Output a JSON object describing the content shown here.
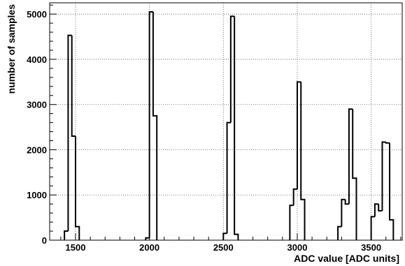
{
  "chart_data": {
    "type": "histogram",
    "xlabel": "ADC value [ADC units]",
    "ylabel": "number of samples",
    "xlim": [
      1325,
      3710
    ],
    "ylim": [
      0,
      5250
    ],
    "grid": true,
    "bin_width": 25,
    "x_ticks": [
      1500,
      2000,
      2500,
      3000,
      3500
    ],
    "y_ticks": [
      0,
      1000,
      2000,
      3000,
      4000,
      5000
    ],
    "x_tick_labels": [
      "1500",
      "2000",
      "2500",
      "3000",
      "3500"
    ],
    "y_tick_labels": [
      "0",
      "1000",
      "2000",
      "3000",
      "4000",
      "5000"
    ],
    "bins": [
      {
        "x": 1425,
        "y": 200
      },
      {
        "x": 1450,
        "y": 4530
      },
      {
        "x": 1475,
        "y": 2300
      },
      {
        "x": 1500,
        "y": 300
      },
      {
        "x": 1975,
        "y": 50
      },
      {
        "x": 2000,
        "y": 5050
      },
      {
        "x": 2025,
        "y": 2750
      },
      {
        "x": 2500,
        "y": 150
      },
      {
        "x": 2525,
        "y": 2600
      },
      {
        "x": 2550,
        "y": 4950
      },
      {
        "x": 2575,
        "y": 130
      },
      {
        "x": 2950,
        "y": 770
      },
      {
        "x": 2975,
        "y": 1130
      },
      {
        "x": 3000,
        "y": 3500
      },
      {
        "x": 3025,
        "y": 900
      },
      {
        "x": 3275,
        "y": 300
      },
      {
        "x": 3300,
        "y": 900
      },
      {
        "x": 3325,
        "y": 800
      },
      {
        "x": 3350,
        "y": 2900
      },
      {
        "x": 3375,
        "y": 1370
      },
      {
        "x": 3500,
        "y": 520
      },
      {
        "x": 3525,
        "y": 800
      },
      {
        "x": 3550,
        "y": 650
      },
      {
        "x": 3575,
        "y": 2170
      },
      {
        "x": 3600,
        "y": 2150
      },
      {
        "x": 3625,
        "y": 450
      }
    ]
  }
}
